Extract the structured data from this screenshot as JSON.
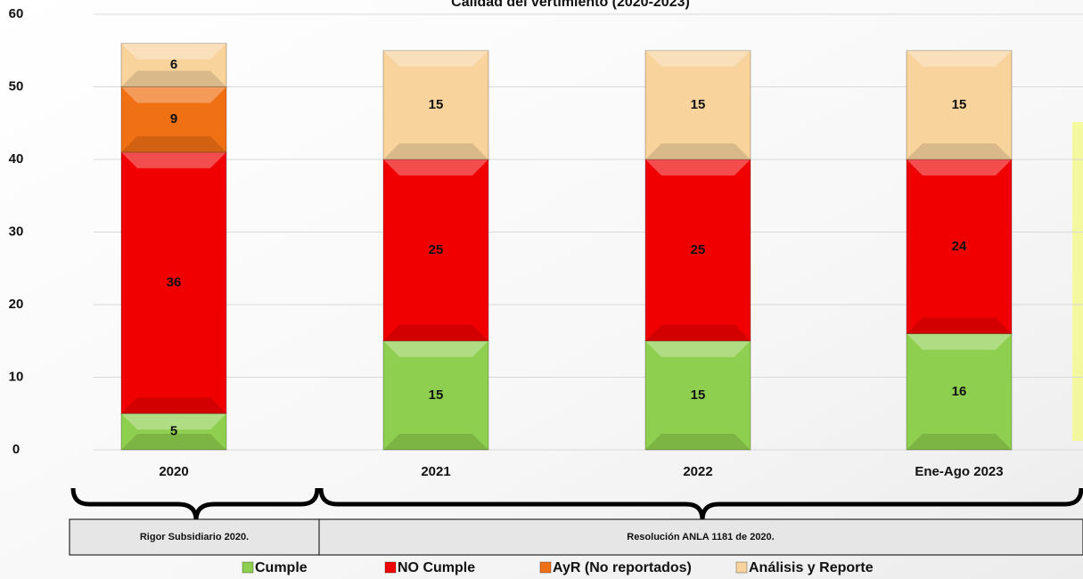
{
  "chart_data": {
    "type": "stacked_bar",
    "title": "Calidad del vertimiento (2020-2023)",
    "categories": [
      "2020",
      "2021",
      "2022",
      "Ene-Ago 2023"
    ],
    "series": [
      {
        "name": "Cumple",
        "color": "#8fcf4f",
        "values": [
          5,
          15,
          15,
          16
        ]
      },
      {
        "name": "NO Cumple",
        "color": "#f00000",
        "values": [
          36,
          25,
          25,
          24
        ]
      },
      {
        "name": "AyR (No reportados)",
        "color": "#f07014",
        "values": [
          9,
          null,
          null,
          null
        ]
      },
      {
        "name": "Análisis y Reporte",
        "color": "#f8d39c",
        "values": [
          6,
          15,
          15,
          15
        ]
      }
    ],
    "ylim": [
      0,
      60
    ],
    "yticks": [
      0,
      10,
      20,
      30,
      40,
      50,
      60
    ],
    "grid": true,
    "annotations": [
      "Rigor Subsidiario 2020.",
      "Resolución ANLA 1181 de 2020."
    ]
  }
}
